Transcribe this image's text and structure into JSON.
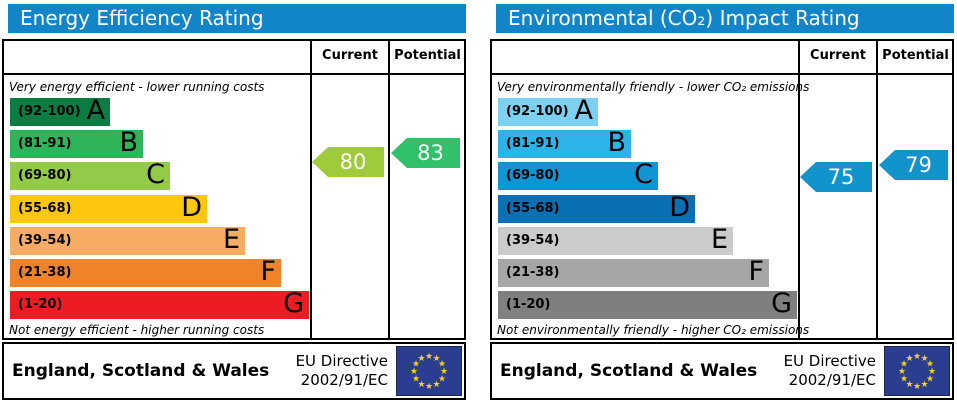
{
  "header_color": "#1285c8",
  "eu_flag": {
    "background": "#2b3d8f",
    "star_color": "#f7d117"
  },
  "chart_data": [
    {
      "type": "bar",
      "title": "Energy Efficiency Rating",
      "columns": {
        "current": "Current",
        "potential": "Potential"
      },
      "top_note": "Very energy efficient - lower running costs",
      "bottom_note": "Not energy efficient - higher running costs",
      "bands": [
        {
          "letter": "A",
          "range": "(92-100)",
          "color": "#0b7d42"
        },
        {
          "letter": "B",
          "range": "(81-91)",
          "color": "#2eb459"
        },
        {
          "letter": "C",
          "range": "(69-80)",
          "color": "#93ca47"
        },
        {
          "letter": "D",
          "range": "(55-68)",
          "color": "#fcc70d"
        },
        {
          "letter": "E",
          "range": "(39-54)",
          "color": "#f6ac63"
        },
        {
          "letter": "F",
          "range": "(21-38)",
          "color": "#ee8329"
        },
        {
          "letter": "G",
          "range": "(1-20)",
          "color": "#ed1c24"
        }
      ],
      "current": {
        "value": 80,
        "color": "#9fcb3b"
      },
      "potential": {
        "value": 83,
        "color": "#30c16a"
      },
      "footer": {
        "region": "England, Scotland & Wales",
        "directive_line1": "EU Directive",
        "directive_line2": "2002/91/EC"
      }
    },
    {
      "type": "bar",
      "title": "Environmental (CO₂) Impact Rating",
      "columns": {
        "current": "Current",
        "potential": "Potential"
      },
      "top_note": "Very environmentally friendly - lower CO₂ emissions",
      "bottom_note": "Not environmentally friendly - higher CO₂ emissions",
      "bands": [
        {
          "letter": "A",
          "range": "(92-100)",
          "color": "#7ed0f0"
        },
        {
          "letter": "B",
          "range": "(81-91)",
          "color": "#2cb4e8"
        },
        {
          "letter": "C",
          "range": "(69-80)",
          "color": "#0f95d2"
        },
        {
          "letter": "D",
          "range": "(55-68)",
          "color": "#0a70b6"
        },
        {
          "letter": "E",
          "range": "(39-54)",
          "color": "#cbcbcb"
        },
        {
          "letter": "F",
          "range": "(21-38)",
          "color": "#a6a6a6"
        },
        {
          "letter": "G",
          "range": "(1-20)",
          "color": "#7f7f7f"
        }
      ],
      "current": {
        "value": 75,
        "color": "#1193cb"
      },
      "potential": {
        "value": 79,
        "color": "#1193cb"
      },
      "footer": {
        "region": "England, Scotland & Wales",
        "directive_line1": "EU Directive",
        "directive_line2": "2002/91/EC"
      }
    }
  ]
}
